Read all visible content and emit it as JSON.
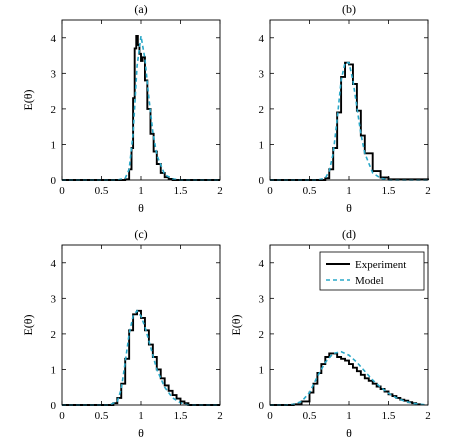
{
  "colors": {
    "experiment": "#000000",
    "model": "#2aa8c8",
    "frame": "#000000",
    "background": "#ffffff"
  },
  "legend": {
    "experiment_label": "Experiment",
    "model_label": "Model",
    "placement": "top-right",
    "panel": "(d)"
  },
  "chart_data": [
    {
      "type": "line",
      "title": "(a)",
      "xlabel": "θ",
      "ylabel": "E(θ)",
      "xlim": [
        0,
        2
      ],
      "ylim": [
        0,
        4.5
      ],
      "xticks": [
        "0",
        "0.5",
        "1",
        "1.5",
        "2"
      ],
      "yticks": [
        "0",
        "1",
        "2",
        "3",
        "4"
      ],
      "grid": false,
      "series": [
        {
          "name": "Experiment",
          "style": "solid-step",
          "x": [
            0,
            0.7,
            0.8,
            0.85,
            0.88,
            0.9,
            0.92,
            0.94,
            0.96,
            0.98,
            1.0,
            1.02,
            1.05,
            1.08,
            1.12,
            1.16,
            1.2,
            1.25,
            1.3,
            1.35,
            1.4,
            1.5,
            2.0
          ],
          "y": [
            0,
            0,
            0.02,
            0.3,
            0.9,
            2.3,
            3.7,
            4.05,
            3.8,
            3.55,
            3.35,
            3.45,
            2.8,
            2.0,
            1.3,
            0.8,
            0.45,
            0.2,
            0.08,
            0.03,
            0,
            0,
            0
          ]
        },
        {
          "name": "Model",
          "style": "dashed",
          "x": [
            0,
            0.7,
            0.8,
            0.85,
            0.9,
            0.95,
            1.0,
            1.05,
            1.1,
            1.15,
            1.2,
            1.3,
            1.4,
            1.5,
            2.0
          ],
          "y": [
            0,
            0,
            0.05,
            0.3,
            1.3,
            3.2,
            4.05,
            3.4,
            2.3,
            1.35,
            0.7,
            0.15,
            0.03,
            0,
            0
          ]
        }
      ]
    },
    {
      "type": "line",
      "title": "(b)",
      "xlabel": "θ",
      "ylabel": "",
      "xlim": [
        0,
        2
      ],
      "ylim": [
        0,
        4.5
      ],
      "xticks": [
        "0",
        "0.5",
        "1",
        "1.5",
        "2"
      ],
      "yticks": [
        "0",
        "1",
        "2",
        "3",
        "4"
      ],
      "grid": false,
      "series": [
        {
          "name": "Experiment",
          "style": "solid-step",
          "x": [
            0,
            0.6,
            0.7,
            0.75,
            0.8,
            0.85,
            0.9,
            0.95,
            1.0,
            1.05,
            1.1,
            1.15,
            1.2,
            1.3,
            1.4,
            1.5,
            2.0
          ],
          "y": [
            0,
            0,
            0.05,
            0.3,
            0.9,
            1.9,
            2.9,
            3.3,
            3.25,
            2.7,
            1.95,
            1.25,
            0.75,
            0.25,
            0.07,
            0.02,
            0
          ]
        },
        {
          "name": "Model",
          "style": "dashed",
          "x": [
            0,
            0.6,
            0.7,
            0.75,
            0.8,
            0.85,
            0.9,
            0.95,
            1.0,
            1.05,
            1.1,
            1.15,
            1.2,
            1.3,
            1.4,
            1.5,
            2.0
          ],
          "y": [
            0,
            0,
            0.05,
            0.25,
            0.75,
            1.7,
            2.8,
            3.3,
            3.3,
            2.8,
            2.05,
            1.3,
            0.75,
            0.2,
            0.05,
            0,
            0
          ]
        }
      ]
    },
    {
      "type": "line",
      "title": "(c)",
      "xlabel": "θ",
      "ylabel": "E(θ)",
      "xlim": [
        0,
        2
      ],
      "ylim": [
        0,
        4.5
      ],
      "xticks": [
        "0",
        "0.5",
        "1",
        "1.5",
        "2"
      ],
      "yticks": [
        "0",
        "1",
        "2",
        "3",
        "4"
      ],
      "grid": false,
      "series": [
        {
          "name": "Experiment",
          "style": "solid-step",
          "x": [
            0,
            0.6,
            0.65,
            0.7,
            0.75,
            0.8,
            0.85,
            0.9,
            0.95,
            1.0,
            1.05,
            1.1,
            1.15,
            1.2,
            1.25,
            1.3,
            1.35,
            1.4,
            1.45,
            1.5,
            1.55,
            1.6,
            2.0
          ],
          "y": [
            0,
            0,
            0.05,
            0.2,
            0.6,
            1.3,
            2.1,
            2.55,
            2.65,
            2.45,
            2.1,
            1.7,
            1.35,
            1.0,
            0.75,
            0.55,
            0.4,
            0.28,
            0.18,
            0.1,
            0.05,
            0,
            0
          ]
        },
        {
          "name": "Model",
          "style": "dashed",
          "x": [
            0,
            0.6,
            0.7,
            0.75,
            0.8,
            0.85,
            0.9,
            0.95,
            1.0,
            1.05,
            1.1,
            1.15,
            1.2,
            1.3,
            1.4,
            1.5,
            1.6,
            2.0
          ],
          "y": [
            0,
            0,
            0.1,
            0.45,
            1.2,
            2.0,
            2.5,
            2.65,
            2.5,
            2.2,
            1.8,
            1.4,
            1.0,
            0.5,
            0.2,
            0.06,
            0,
            0
          ]
        }
      ]
    },
    {
      "type": "line",
      "title": "(d)",
      "xlabel": "θ",
      "ylabel": "E(θ)",
      "xlim": [
        0,
        2
      ],
      "ylim": [
        0,
        4.5
      ],
      "xticks": [
        "0",
        "0.5",
        "1",
        "1.5",
        "2"
      ],
      "yticks": [
        "0",
        "1",
        "2",
        "3",
        "4"
      ],
      "grid": false,
      "series": [
        {
          "name": "Experiment",
          "style": "solid-step",
          "x": [
            0,
            0.2,
            0.3,
            0.4,
            0.5,
            0.55,
            0.6,
            0.65,
            0.7,
            0.75,
            0.8,
            0.85,
            0.9,
            0.95,
            1.0,
            1.05,
            1.1,
            1.15,
            1.2,
            1.25,
            1.3,
            1.35,
            1.4,
            1.45,
            1.5,
            1.55,
            1.6,
            1.65,
            1.7,
            1.75,
            1.8,
            1.85,
            1.9
          ],
          "y": [
            0,
            0,
            0.02,
            0.1,
            0.35,
            0.6,
            0.9,
            1.15,
            1.35,
            1.45,
            1.45,
            1.35,
            1.3,
            1.25,
            1.15,
            1.05,
            0.95,
            0.85,
            0.75,
            0.68,
            0.6,
            0.52,
            0.45,
            0.38,
            0.3,
            0.25,
            0.2,
            0.15,
            0.12,
            0.08,
            0.05,
            0.02,
            0
          ]
        },
        {
          "name": "Model",
          "style": "dashed",
          "x": [
            0,
            0.2,
            0.3,
            0.4,
            0.5,
            0.6,
            0.7,
            0.8,
            0.9,
            1.0,
            1.1,
            1.2,
            1.3,
            1.4,
            1.5,
            1.6,
            1.7,
            1.8,
            1.9,
            2.0
          ],
          "y": [
            0,
            0,
            0.02,
            0.1,
            0.35,
            0.8,
            1.2,
            1.45,
            1.5,
            1.4,
            1.2,
            0.95,
            0.7,
            0.5,
            0.33,
            0.2,
            0.11,
            0.05,
            0.02,
            0
          ]
        }
      ]
    }
  ]
}
